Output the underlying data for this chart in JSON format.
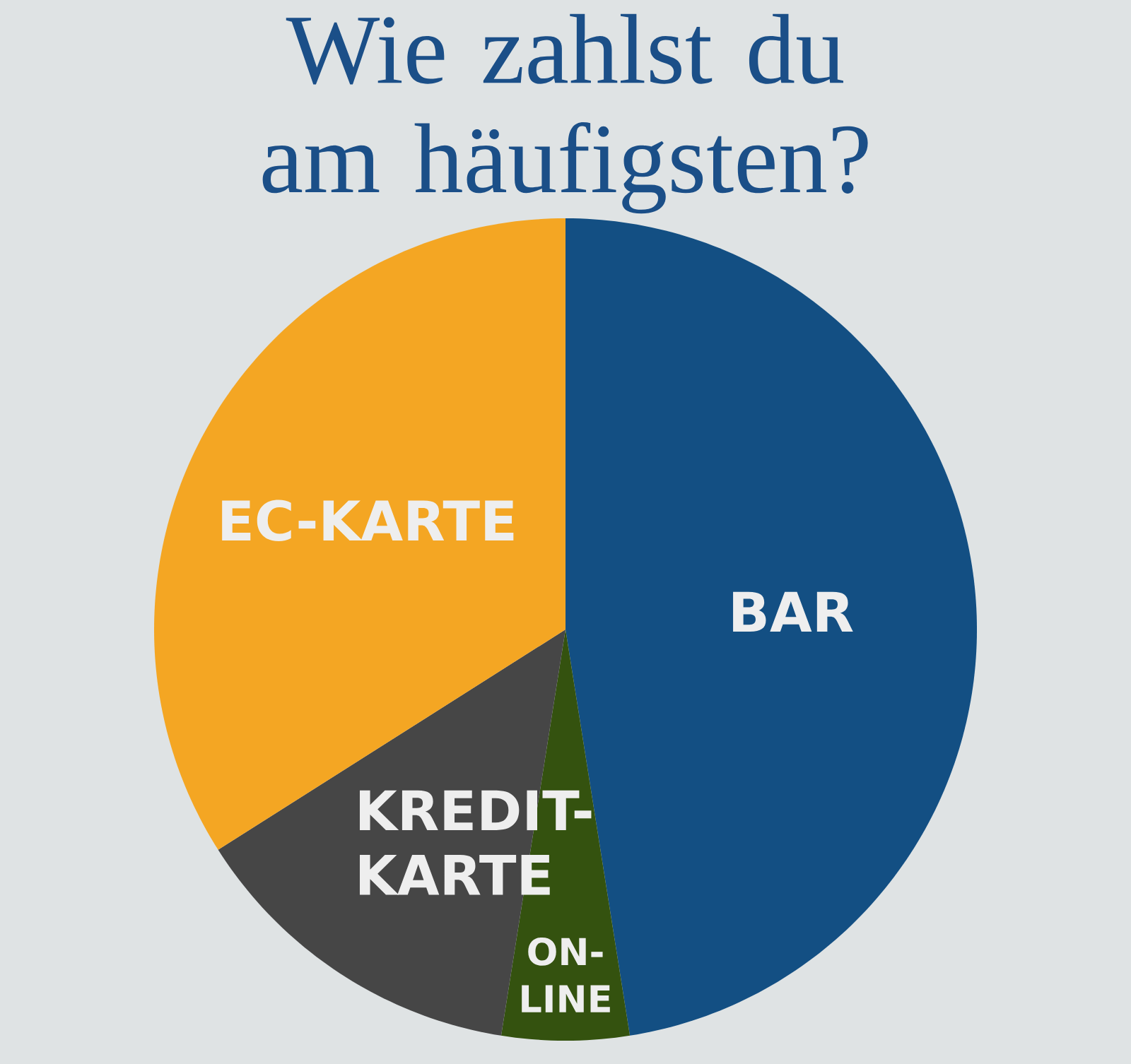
{
  "chart_data": {
    "type": "pie",
    "title": "Wie zahlst du am häufigsten?",
    "categories": [
      "BAR",
      "ON-LINE",
      "KREDIT-KARTE",
      "EC-KARTE"
    ],
    "values": [
      47.5,
      5,
      13.5,
      34
    ],
    "colors": [
      "#134f83",
      "#34520f",
      "#464646",
      "#f4a623"
    ]
  }
}
